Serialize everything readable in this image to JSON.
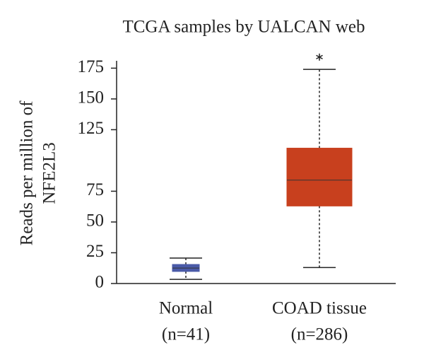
{
  "chart_data": {
    "type": "box",
    "title": "TCGA samples by UALCAN web",
    "ylabel": [
      "Reads per million of",
      "NFE2L3"
    ],
    "categories": [
      "Normal",
      "COAD tissue"
    ],
    "sublabels": [
      "(n=41)",
      "(n=286)"
    ],
    "boxes": [
      {
        "color": "#4a5aa8",
        "min": 3.4,
        "q1": 9.8,
        "median": 12.6,
        "q3": 15.5,
        "max": 20.7,
        "outliers": []
      },
      {
        "color": "#c8401e",
        "min": 13,
        "q1": 63,
        "median": 84,
        "q3": 110,
        "max": 174,
        "outliers": [
          184
        ]
      }
    ],
    "ylim": [
      0,
      185
    ],
    "yticks": [
      0,
      25,
      50,
      75,
      125,
      150,
      175
    ]
  }
}
